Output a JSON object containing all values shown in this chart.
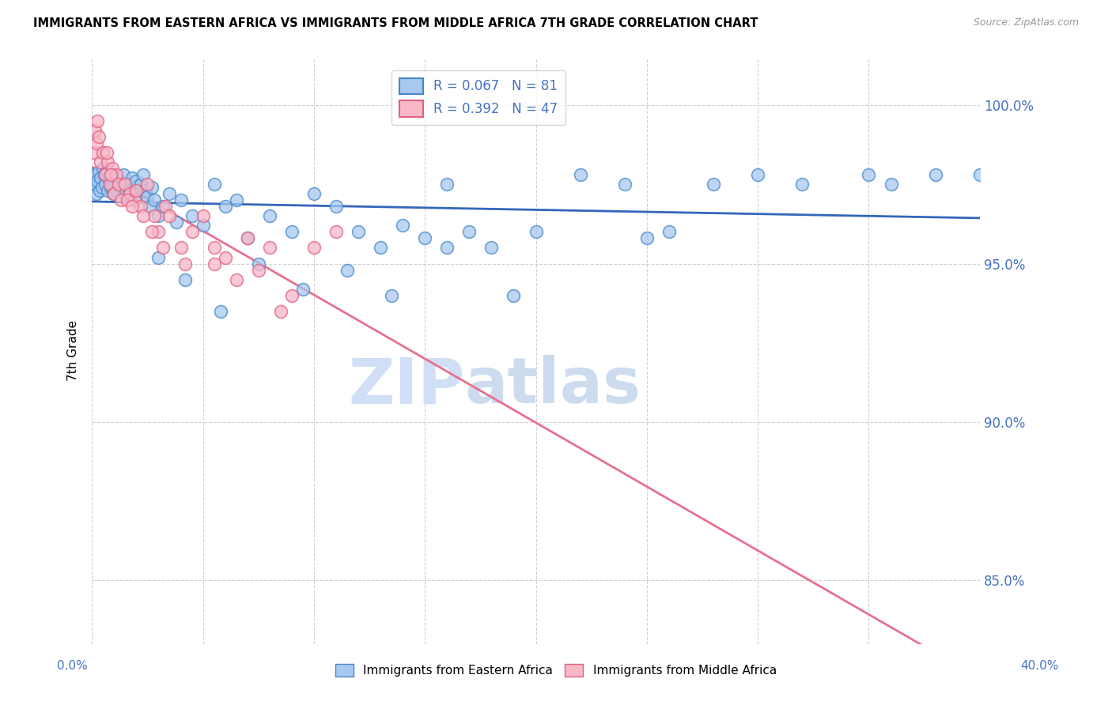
{
  "title": "IMMIGRANTS FROM EASTERN AFRICA VS IMMIGRANTS FROM MIDDLE AFRICA 7TH GRADE CORRELATION CHART",
  "source": "Source: ZipAtlas.com",
  "ylabel": "7th Grade",
  "xmin": 0.0,
  "xmax": 40.0,
  "ymin": 83.0,
  "ymax": 101.5,
  "yticks": [
    85.0,
    90.0,
    95.0,
    100.0
  ],
  "R_blue": 0.067,
  "N_blue": 81,
  "R_pink": 0.392,
  "N_pink": 47,
  "color_blue_fill": "#A8C8F0",
  "color_blue_edge": "#4488CC",
  "color_pink_fill": "#F8B8C8",
  "color_pink_edge": "#E06080",
  "color_blue_line": "#3366BB",
  "color_pink_line": "#E87090",
  "watermark_color": "#D0DFF5",
  "blue_x": [
    0.1,
    0.15,
    0.2,
    0.25,
    0.3,
    0.35,
    0.4,
    0.45,
    0.5,
    0.55,
    0.6,
    0.65,
    0.7,
    0.75,
    0.8,
    0.85,
    0.9,
    0.95,
    1.0,
    1.05,
    1.1,
    1.2,
    1.3,
    1.4,
    1.5,
    1.6,
    1.7,
    1.8,
    1.9,
    2.0,
    2.1,
    2.2,
    2.3,
    2.4,
    2.5,
    2.6,
    2.7,
    2.8,
    3.0,
    3.2,
    3.5,
    3.8,
    4.0,
    4.5,
    5.0,
    5.5,
    6.0,
    6.5,
    7.0,
    8.0,
    9.0,
    10.0,
    11.0,
    12.0,
    13.0,
    14.0,
    15.0,
    16.0,
    17.0,
    18.0,
    20.0,
    22.0,
    24.0,
    25.0,
    26.0,
    28.0,
    30.0,
    32.0,
    35.0,
    36.0,
    38.0,
    40.0,
    3.0,
    4.2,
    5.8,
    7.5,
    9.5,
    11.5,
    13.5,
    16.0,
    19.0
  ],
  "blue_y": [
    97.5,
    97.8,
    97.2,
    97.6,
    97.9,
    97.3,
    97.7,
    97.4,
    98.0,
    97.8,
    97.5,
    97.9,
    97.3,
    97.7,
    97.6,
    97.4,
    97.8,
    97.2,
    97.5,
    97.7,
    97.3,
    97.6,
    97.4,
    97.8,
    97.2,
    97.5,
    97.3,
    97.7,
    97.4,
    97.6,
    97.2,
    97.5,
    97.8,
    97.3,
    97.1,
    96.8,
    97.4,
    97.0,
    96.5,
    96.8,
    97.2,
    96.3,
    97.0,
    96.5,
    96.2,
    97.5,
    96.8,
    97.0,
    95.8,
    96.5,
    96.0,
    97.2,
    96.8,
    96.0,
    95.5,
    96.2,
    95.8,
    97.5,
    96.0,
    95.5,
    96.0,
    97.8,
    97.5,
    95.8,
    96.0,
    97.5,
    97.8,
    97.5,
    97.8,
    97.5,
    97.8,
    97.8,
    95.2,
    94.5,
    93.5,
    95.0,
    94.2,
    94.8,
    94.0,
    95.5,
    94.0
  ],
  "pink_x": [
    0.1,
    0.15,
    0.2,
    0.25,
    0.3,
    0.4,
    0.5,
    0.6,
    0.7,
    0.8,
    0.9,
    1.0,
    1.1,
    1.2,
    1.3,
    1.5,
    1.7,
    1.9,
    2.0,
    2.2,
    2.5,
    2.8,
    3.0,
    3.3,
    3.5,
    4.0,
    4.5,
    5.0,
    5.5,
    6.0,
    7.0,
    8.0,
    9.0,
    10.0,
    11.0,
    5.5,
    6.5,
    7.5,
    8.5,
    2.3,
    2.7,
    3.2,
    4.2,
    1.6,
    1.8,
    0.65,
    0.85
  ],
  "pink_y": [
    98.5,
    99.2,
    98.8,
    99.5,
    99.0,
    98.2,
    98.5,
    97.8,
    98.2,
    97.5,
    98.0,
    97.2,
    97.8,
    97.5,
    97.0,
    97.5,
    97.2,
    97.0,
    97.3,
    96.8,
    97.5,
    96.5,
    96.0,
    96.8,
    96.5,
    95.5,
    96.0,
    96.5,
    95.5,
    95.2,
    95.8,
    95.5,
    94.0,
    95.5,
    96.0,
    95.0,
    94.5,
    94.8,
    93.5,
    96.5,
    96.0,
    95.5,
    95.0,
    97.0,
    96.8,
    98.5,
    97.8
  ]
}
